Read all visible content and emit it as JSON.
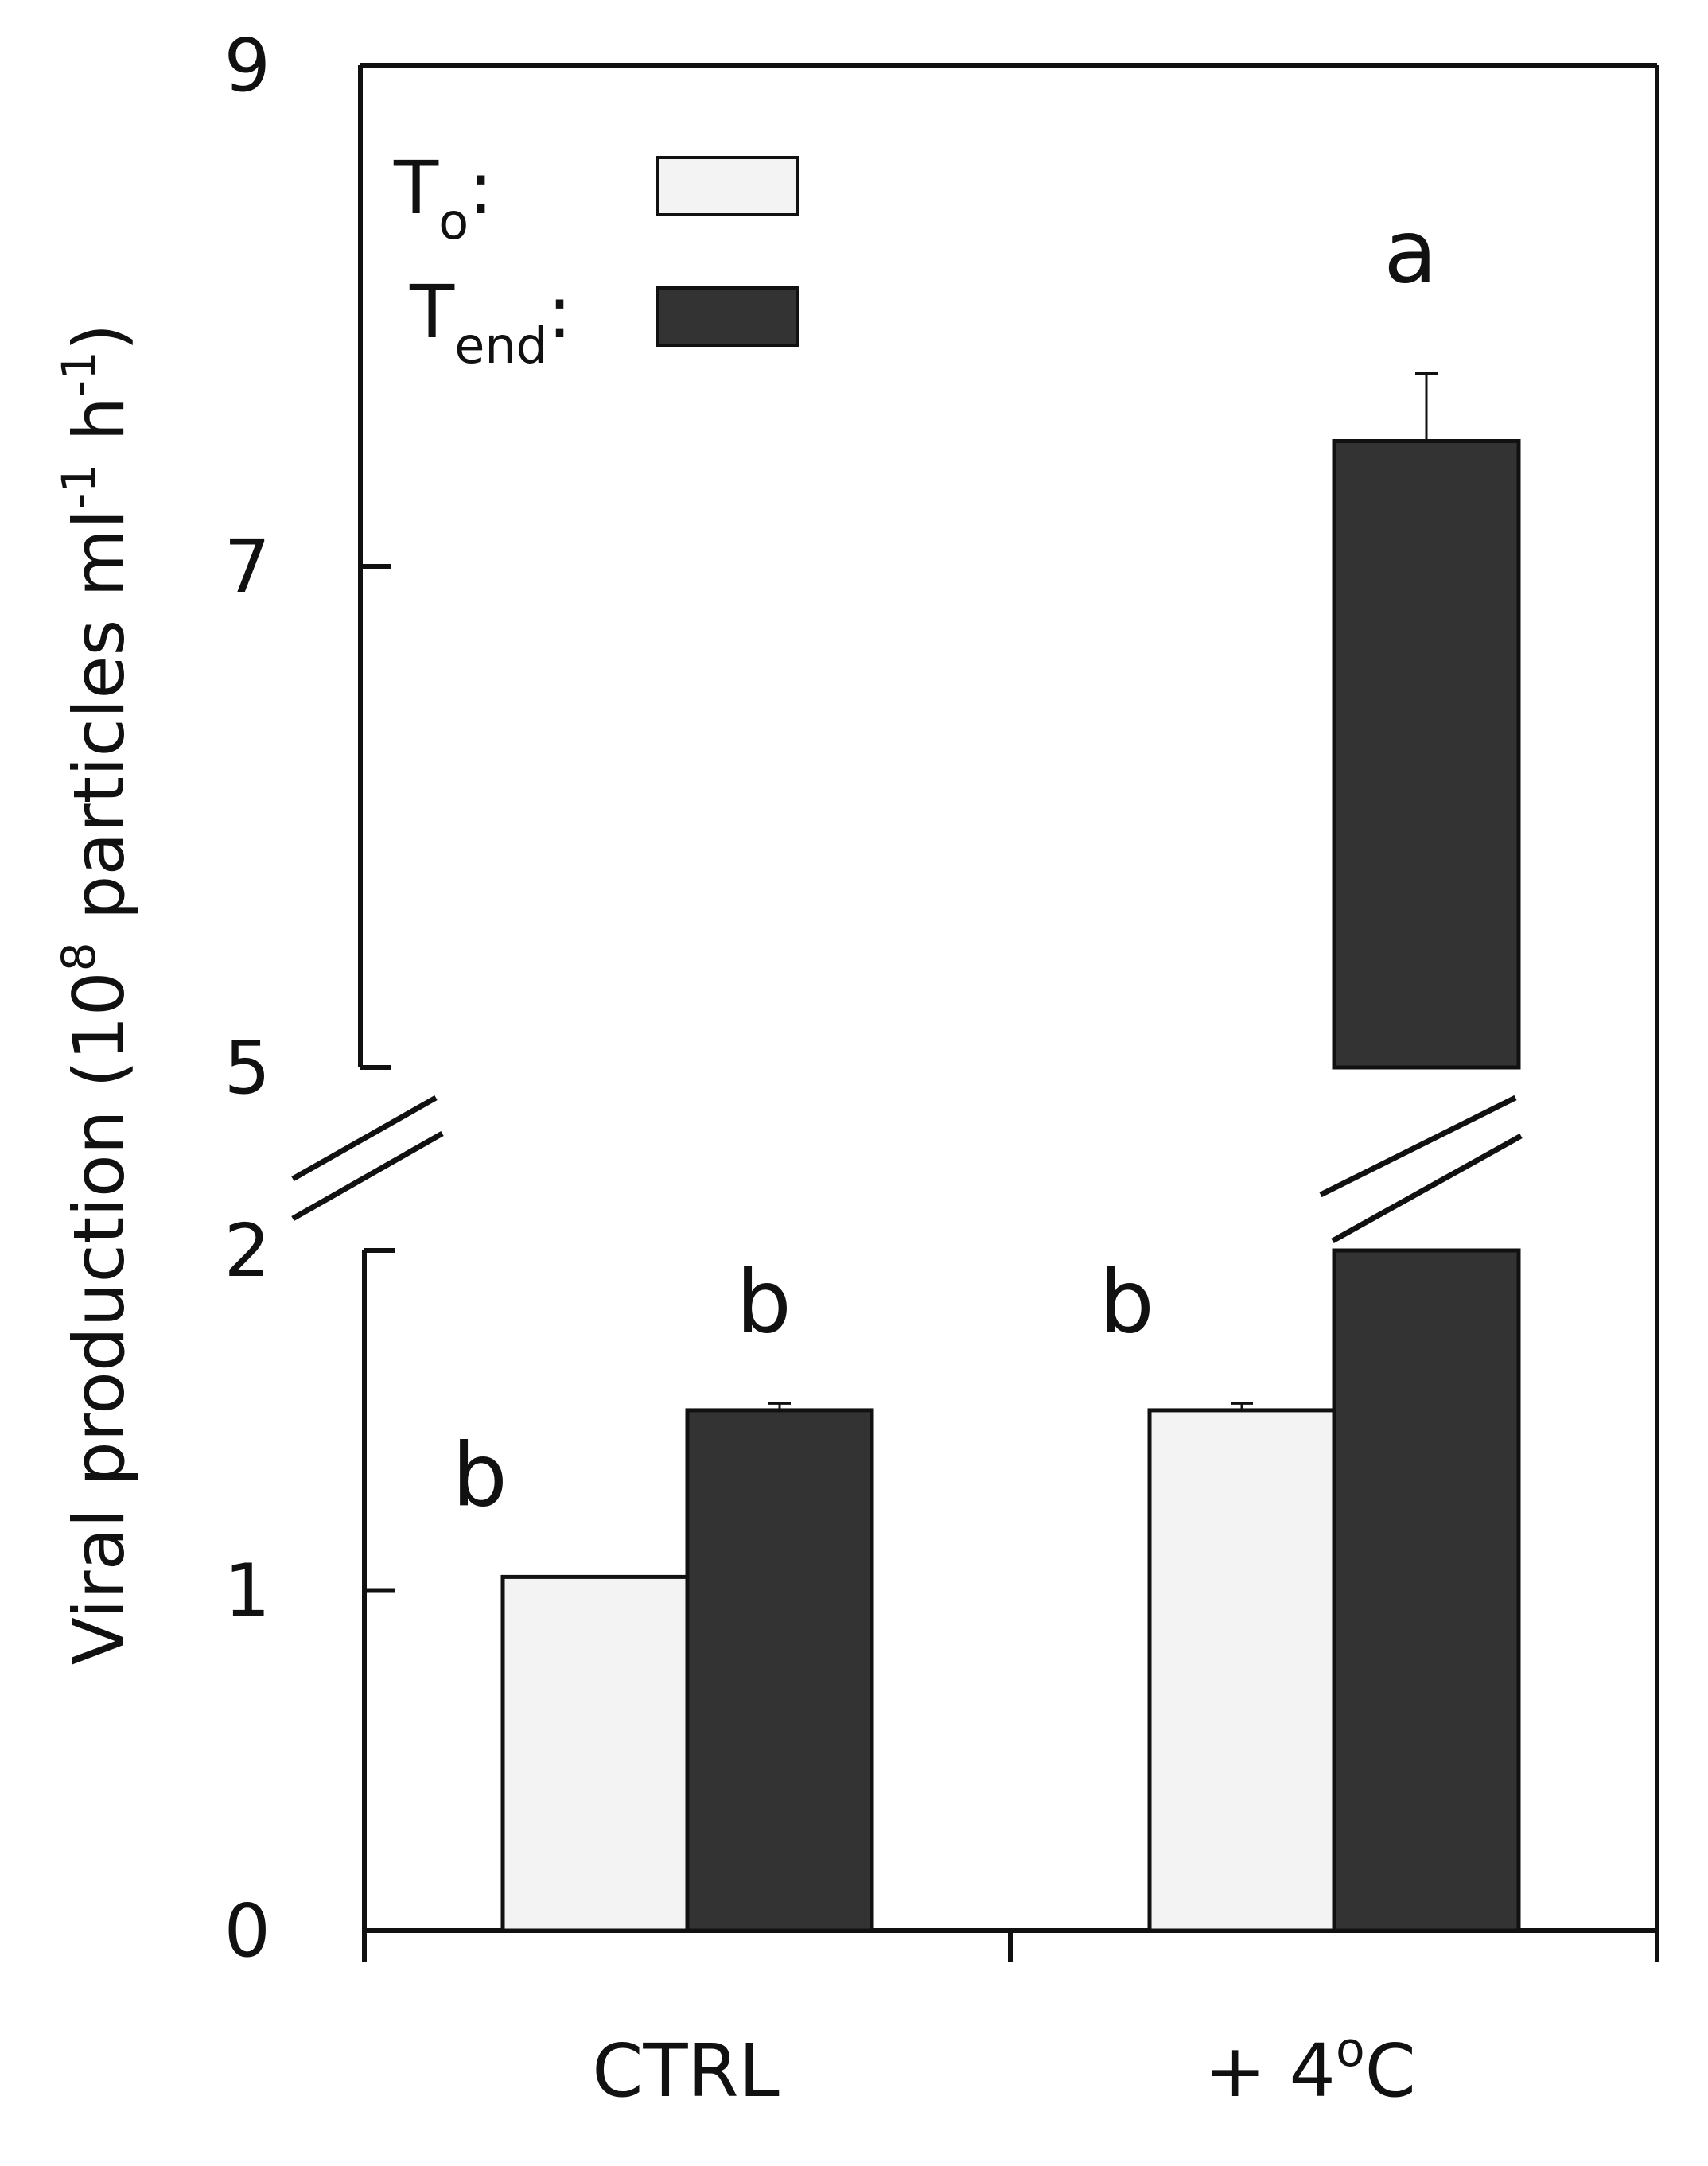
{
  "chart_data": {
    "type": "bar",
    "title": "",
    "xlabel": "",
    "ylabel": {
      "prefix": "Viral production (10",
      "sup1": "8",
      "middle": " particles ml",
      "sup2": "-1",
      "middle2": " h",
      "sup3": "-1",
      "suffix": ")"
    },
    "categories": [
      {
        "main": "CTRL",
        "sup": "",
        "tail": ""
      },
      {
        "main": "+ 4",
        "sup": "o",
        "tail": "C"
      }
    ],
    "series": [
      {
        "name": "To",
        "color": "#f3f3f3",
        "values": [
          1.04,
          1.53
        ],
        "errors": [
          0,
          0.02
        ]
      },
      {
        "name": "Tend",
        "color": "#333333",
        "values": [
          1.53,
          7.5
        ],
        "errors": [
          0.02,
          0.27
        ]
      }
    ],
    "significance": [
      [
        "b",
        "b"
      ],
      [
        "b",
        "a"
      ]
    ],
    "legend": {
      "placement": "top-left",
      "items": [
        {
          "main": "T",
          "sub": "o",
          "suffix": ":"
        },
        {
          "main": "T",
          "sub": "end",
          "suffix": ":"
        }
      ]
    },
    "axis_break": {
      "lower": 2,
      "upper": 5
    },
    "ylim_lower": [
      0,
      2
    ],
    "ylim_upper": [
      5,
      9
    ],
    "yticks": [
      "0",
      "1",
      "2",
      "5",
      "7",
      "9"
    ],
    "grid": false
  }
}
